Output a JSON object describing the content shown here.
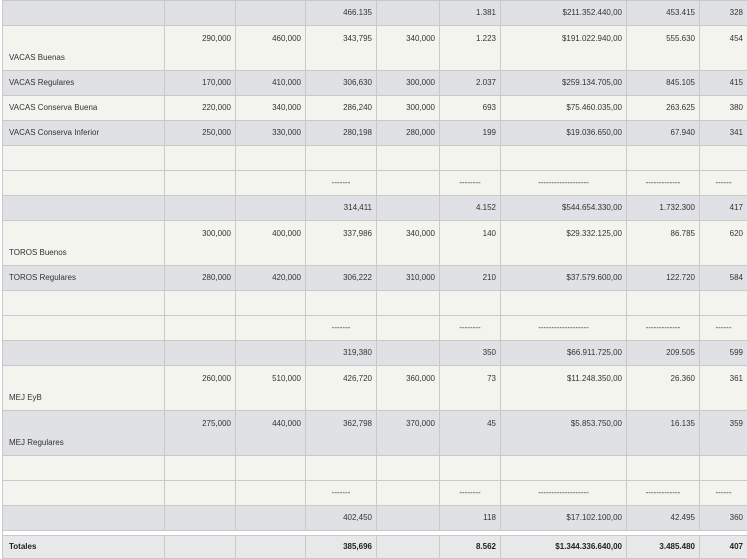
{
  "rows": [
    {
      "kind": "subtotal",
      "label": "",
      "c1": "",
      "c2": "",
      "c3": "466.135",
      "c4": "",
      "c5": "1.381",
      "c6": "$211.352.440,00",
      "c7": "453.415",
      "c8": "328"
    },
    {
      "kind": "tall",
      "label": "VACAS Buenas",
      "c1": "290,000",
      "c2": "460,000",
      "c3": "343,795",
      "c4": "340,000",
      "c5": "1.223",
      "c6": "$191.022.940,00",
      "c7": "555.630",
      "c8": "454"
    },
    {
      "kind": "row",
      "label": "VACAS Regulares",
      "c1": "170,000",
      "c2": "410,000",
      "c3": "306,630",
      "c4": "300,000",
      "c5": "2.037",
      "c6": "$259.134.705,00",
      "c7": "845.105",
      "c8": "415"
    },
    {
      "kind": "row",
      "label": "VACAS Conserva Buena",
      "c1": "220,000",
      "c2": "340,000",
      "c3": "286,240",
      "c4": "300,000",
      "c5": "693",
      "c6": "$75.460.035,00",
      "c7": "263.625",
      "c8": "380"
    },
    {
      "kind": "row",
      "label": "VACAS Conserva Inferior",
      "c1": "250,000",
      "c2": "330,000",
      "c3": "280,198",
      "c4": "280,000",
      "c5": "199",
      "c6": "$19.036.650,00",
      "c7": "67.940",
      "c8": "341"
    },
    {
      "kind": "blank"
    },
    {
      "kind": "dashes",
      "c3": "-------",
      "c5": "--------",
      "c6": "-------------------",
      "c7": "-------------",
      "c8": "------"
    },
    {
      "kind": "subtotal",
      "label": "",
      "c1": "",
      "c2": "",
      "c3": "314,411",
      "c4": "",
      "c5": "4.152",
      "c6": "$544.654.330,00",
      "c7": "1.732.300",
      "c8": "417"
    },
    {
      "kind": "tall",
      "label": "TOROS Buenos",
      "c1": "300,000",
      "c2": "400,000",
      "c3": "337,986",
      "c4": "340,000",
      "c5": "140",
      "c6": "$29.332.125,00",
      "c7": "86.785",
      "c8": "620"
    },
    {
      "kind": "row",
      "label": "TOROS Regulares",
      "c1": "280,000",
      "c2": "420,000",
      "c3": "306,222",
      "c4": "310,000",
      "c5": "210",
      "c6": "$37.579.600,00",
      "c7": "122.720",
      "c8": "584"
    },
    {
      "kind": "blank"
    },
    {
      "kind": "dashes",
      "c3": "-------",
      "c5": "--------",
      "c6": "-------------------",
      "c7": "-------------",
      "c8": "------"
    },
    {
      "kind": "subtotal",
      "label": "",
      "c1": "",
      "c2": "",
      "c3": "319,380",
      "c4": "",
      "c5": "350",
      "c6": "$66.911.725,00",
      "c7": "209.505",
      "c8": "599"
    },
    {
      "kind": "tall",
      "label": "MEJ EyB",
      "c1": "260,000",
      "c2": "510,000",
      "c3": "426,720",
      "c4": "360,000",
      "c5": "73",
      "c6": "$11.248.350,00",
      "c7": "26.360",
      "c8": "361"
    },
    {
      "kind": "tall",
      "label": "MEJ Regulares",
      "c1": "275,000",
      "c2": "440,000",
      "c3": "362,798",
      "c4": "370,000",
      "c5": "45",
      "c6": "$5.853.750,00",
      "c7": "16.135",
      "c8": "359"
    },
    {
      "kind": "blank"
    },
    {
      "kind": "dashes",
      "c3": "-------",
      "c5": "--------",
      "c6": "-------------------",
      "c7": "-------------",
      "c8": "------"
    },
    {
      "kind": "subtotal",
      "label": "",
      "c1": "",
      "c2": "",
      "c3": "402,450",
      "c4": "",
      "c5": "118",
      "c6": "$17.102.100,00",
      "c7": "42.495",
      "c8": "360"
    }
  ],
  "totals": {
    "label": "Totales",
    "c1": "",
    "c2": "",
    "c3": "385,696",
    "c4": "",
    "c5": "8.562",
    "c6": "$1.344.336.640,00",
    "c7": "3.485.480",
    "c8": "407"
  }
}
